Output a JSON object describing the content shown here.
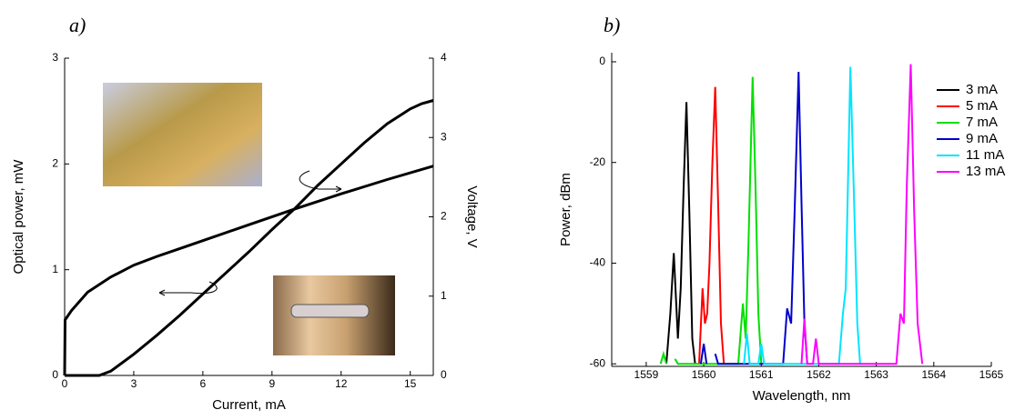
{
  "chart_data": [
    {
      "type": "line",
      "panel_label": "a)",
      "xlabel": "Current, mA",
      "ylabel": "Optical power, mW",
      "y2label": "Voltage, V",
      "xlim": [
        0,
        16
      ],
      "xticks": [
        0,
        3,
        6,
        9,
        12,
        15
      ],
      "ylim": [
        0,
        3
      ],
      "yticks": [
        0,
        1,
        2,
        3
      ],
      "y2lim": [
        0,
        4
      ],
      "y2ticks": [
        0,
        1,
        2,
        3,
        4
      ],
      "series": [
        {
          "color": "#000000",
          "axis": "y",
          "x": [
            0,
            1.5,
            2,
            3,
            4,
            5,
            6,
            7,
            8,
            9,
            10,
            11,
            12,
            13,
            14,
            15,
            15.5,
            16
          ],
          "values": [
            0,
            0,
            0.04,
            0.2,
            0.38,
            0.57,
            0.77,
            0.97,
            1.17,
            1.38,
            1.58,
            1.8,
            2.0,
            2.2,
            2.38,
            2.52,
            2.57,
            2.6
          ]
        },
        {
          "color": "#000000",
          "axis": "y2",
          "x": [
            0,
            0.02,
            0.3,
            1,
            2,
            3,
            4,
            5,
            6,
            8,
            10,
            12,
            14,
            16
          ],
          "values": [
            0,
            0.7,
            0.82,
            1.05,
            1.24,
            1.39,
            1.5,
            1.6,
            1.7,
            1.9,
            2.1,
            2.29,
            2.47,
            2.64
          ]
        }
      ]
    },
    {
      "type": "line",
      "panel_label": "b)",
      "xlabel": "Wavelength, nm",
      "ylabel": "Power, dBm",
      "xlim": [
        1558.4,
        1565
      ],
      "xticks": [
        1559,
        1560,
        1561,
        1562,
        1563,
        1564,
        1565
      ],
      "ylim": [
        -60.5,
        1.8
      ],
      "yticks": [
        0,
        -20,
        -40,
        -60
      ],
      "legend": "top-right",
      "series": [
        {
          "name": "3 mA",
          "color": "#000000",
          "x": [
            1559.35,
            1559.42,
            1559.48,
            1559.55,
            1559.6,
            1559.65,
            1559.7,
            1559.75,
            1559.8,
            1559.85
          ],
          "values": [
            -60,
            -50,
            -38,
            -55,
            -45,
            -25,
            -8,
            -30,
            -55,
            -60
          ]
        },
        {
          "name": "5 mA",
          "color": "#ff0000",
          "x": [
            1559.92,
            1559.98,
            1560.02,
            1560.06,
            1560.1,
            1560.15,
            1560.2,
            1560.25,
            1560.3,
            1560.35
          ],
          "values": [
            -60,
            -45,
            -52,
            -50,
            -40,
            -20,
            -5,
            -28,
            -52,
            -60
          ]
        },
        {
          "name": "7 mA",
          "color": "#00e000",
          "x": [
            1559.25,
            1559.3,
            1559.35,
            1559.45,
            1559.5,
            1559.55,
            1560.6,
            1560.68,
            1560.73,
            1560.78,
            1560.85,
            1560.9,
            1560.95,
            1561.0
          ],
          "values": [
            -60,
            -58,
            -60,
            null,
            -59,
            -60,
            -60,
            -48,
            -55,
            -35,
            -3,
            -25,
            -50,
            -60
          ]
        },
        {
          "name": "9 mA",
          "color": "#0000cc",
          "x": [
            1559.95,
            1560.0,
            1560.05,
            1560.15,
            1560.2,
            1560.25,
            1561.38,
            1561.45,
            1561.52,
            1561.58,
            1561.65,
            1561.7,
            1561.75,
            1561.8
          ],
          "values": [
            -60,
            -56,
            -60,
            null,
            -58,
            -60,
            -60,
            -49,
            -52,
            -30,
            -2,
            -28,
            -52,
            -60
          ]
        },
        {
          "name": "11 mA",
          "color": "#00e5ff",
          "x": [
            1560.7,
            1560.75,
            1560.8,
            1560.95,
            1561.0,
            1561.05,
            1562.35,
            1562.42,
            1562.47,
            1562.55,
            1562.62,
            1562.67,
            1562.72
          ],
          "values": [
            -60,
            -54,
            -60,
            -60,
            -56,
            -60,
            -60,
            -50,
            -45,
            -1,
            -30,
            -52,
            -60
          ]
        },
        {
          "name": "13 mA",
          "color": "#ff00ff",
          "x": [
            1561.7,
            1561.75,
            1561.8,
            1561.9,
            1561.95,
            1562.0,
            1563.35,
            1563.42,
            1563.48,
            1563.53,
            1563.6,
            1563.66,
            1563.72,
            1563.8
          ],
          "values": [
            -60,
            -51,
            -60,
            -60,
            -55,
            -60,
            -60,
            -50,
            -52,
            -25,
            -0.5,
            -30,
            -52,
            -60
          ]
        }
      ]
    }
  ]
}
